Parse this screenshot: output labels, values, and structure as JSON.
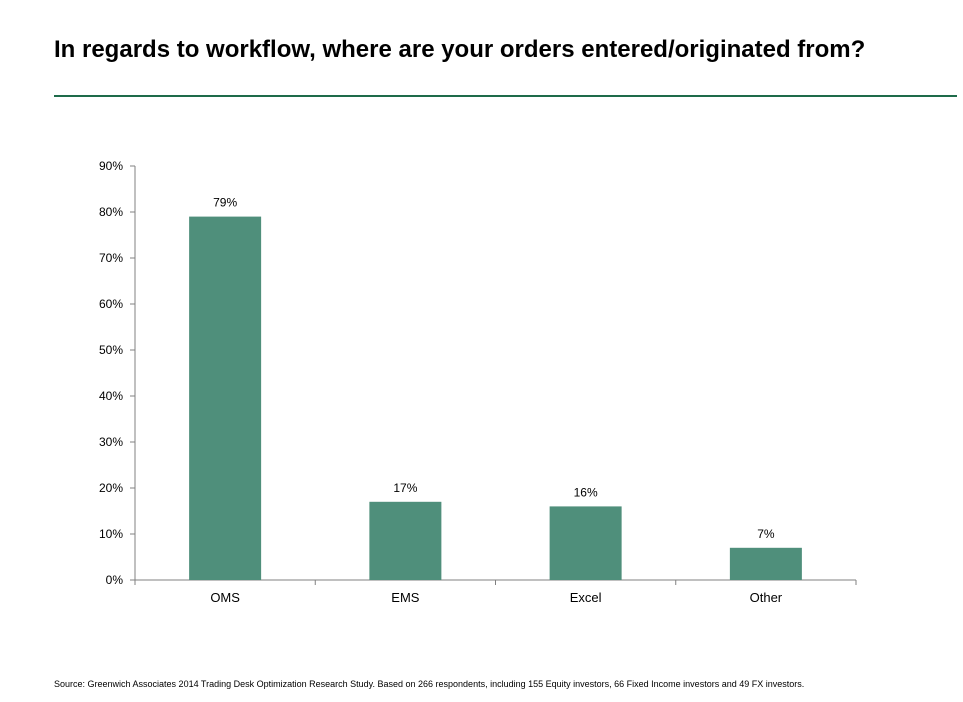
{
  "title": "In regards to workflow, where are your orders entered/originated from?",
  "source": "Source:  Greenwich Associates 2014 Trading Desk Optimization Research Study.  Based on 266 respondents, including 155 Equity  investors, 66 Fixed Income investors and 49 FX investors.",
  "colors": {
    "bar": "#4f8f7b",
    "title_rule": "#1e6b4a",
    "axis": "#808080"
  },
  "chart_data": {
    "type": "bar",
    "categories": [
      "OMS",
      "EMS",
      "Excel",
      "Other"
    ],
    "values": [
      79,
      17,
      16,
      7
    ],
    "data_labels": [
      "79%",
      "17%",
      "16%",
      "7%"
    ],
    "yticks": [
      "0%",
      "10%",
      "20%",
      "30%",
      "40%",
      "50%",
      "60%",
      "70%",
      "80%",
      "90%"
    ],
    "ylim": [
      0,
      90
    ],
    "grid": false,
    "legend": "none"
  }
}
